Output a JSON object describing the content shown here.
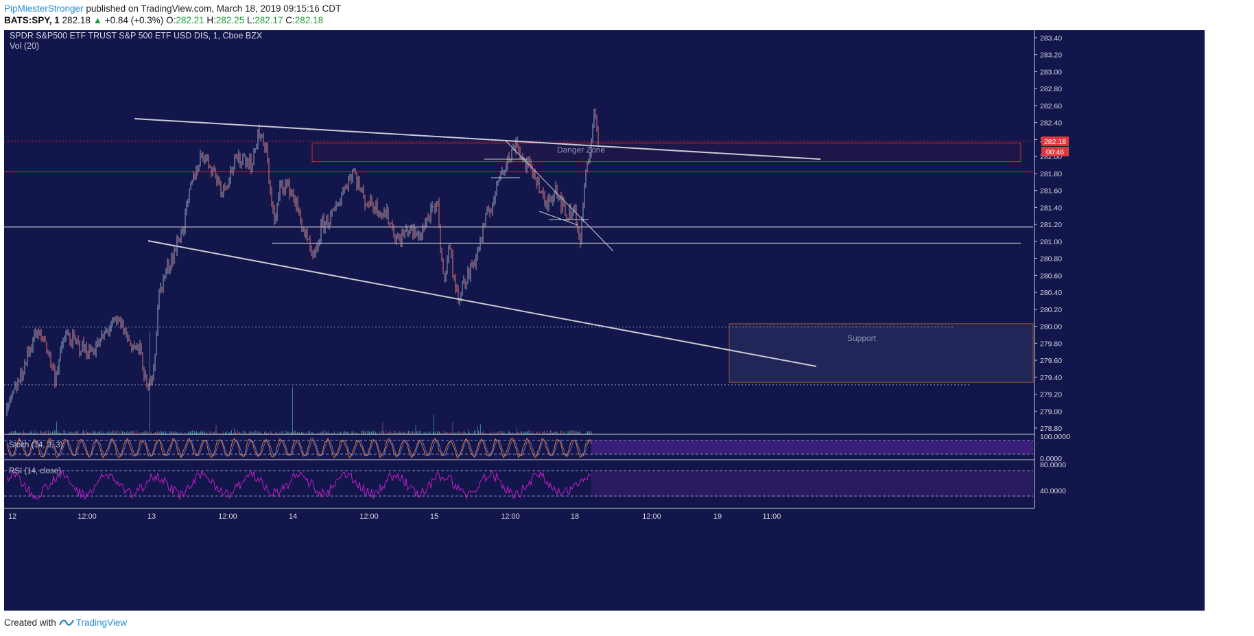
{
  "header": {
    "author": "PipMiesterStronger",
    "published": "published on TradingView.com, March 18, 2019 09:15:16 CDT",
    "symbol": "BATS:SPY, 1",
    "last": "282.18",
    "change": "+0.84 (+0.3%)",
    "o_label": "O:",
    "o_val": "282.21",
    "h_label": "H:",
    "h_val": "282.25",
    "l_label": "L:",
    "l_val": "282.17",
    "c_label": "C:",
    "c_val": "282.18"
  },
  "footer": {
    "created": "Created with",
    "brand": "TradingView"
  },
  "colors": {
    "background": "#13164a",
    "candle_up": "#9aa9c4",
    "candle_down": "#e0787a",
    "trendline": "#c9ccd6",
    "zone_red": "#d9262c",
    "stoch_k": "#e27a2b",
    "stoch_d": "#5d6bd0",
    "rsi": "#c01fc5"
  },
  "chart_data": {
    "type": "line",
    "title": "SPDR S&P500 ETF TRUST S&P 500 ETF USD DIS, 1, Cboe BZX",
    "indicator_volume": "Vol (20)",
    "y_ticks": [
      "283.40",
      "283.20",
      "283.00",
      "282.80",
      "282.60",
      "282.40",
      "282.20",
      "282.00",
      "281.80",
      "281.60",
      "281.40",
      "281.20",
      "281.00",
      "280.80",
      "280.60",
      "280.40",
      "280.20",
      "280.00",
      "279.80",
      "279.60",
      "279.40",
      "279.20",
      "279.00",
      "278.80"
    ],
    "ylim": [
      278.74,
      283.55
    ],
    "x_ticks": [
      "12",
      "12:00",
      "13",
      "12:00",
      "14",
      "12:00",
      "15",
      "12:00",
      "18",
      "12:00",
      "19",
      "11:00"
    ],
    "last_price_label": "282.18",
    "countdown_label": "00:46",
    "annotations": [
      "Danger Zone",
      "Support"
    ],
    "horizontal_levels": [
      282.18,
      281.82,
      281.17,
      280.98,
      279.99,
      279.31
    ],
    "zones": [
      {
        "label": "Danger Zone",
        "y_low": 281.94,
        "y_high": 282.16
      },
      {
        "label": "Support",
        "y_low": 279.34,
        "y_high": 280.03
      }
    ],
    "price_path": [
      [
        0,
        279.0
      ],
      [
        20,
        279.4
      ],
      [
        40,
        279.9
      ],
      [
        55,
        279.85
      ],
      [
        70,
        279.4
      ],
      [
        85,
        279.9
      ],
      [
        100,
        279.8
      ],
      [
        120,
        279.7
      ],
      [
        135,
        279.8
      ],
      [
        150,
        280.0
      ],
      [
        165,
        280.05
      ],
      [
        180,
        279.8
      ],
      [
        195,
        279.7
      ],
      [
        205,
        279.2
      ],
      [
        215,
        279.6
      ],
      [
        222,
        280.4
      ],
      [
        230,
        280.6
      ],
      [
        245,
        280.9
      ],
      [
        258,
        281.2
      ],
      [
        270,
        281.7
      ],
      [
        285,
        282.05
      ],
      [
        300,
        281.85
      ],
      [
        315,
        281.6
      ],
      [
        330,
        281.9
      ],
      [
        345,
        282.0
      ],
      [
        358,
        281.9
      ],
      [
        366,
        282.3
      ],
      [
        378,
        282.05
      ],
      [
        390,
        281.2
      ],
      [
        400,
        281.7
      ],
      [
        415,
        281.6
      ],
      [
        430,
        281.2
      ],
      [
        447,
        280.75
      ],
      [
        460,
        281.2
      ],
      [
        475,
        281.3
      ],
      [
        490,
        281.6
      ],
      [
        505,
        281.85
      ],
      [
        520,
        281.5
      ],
      [
        540,
        281.4
      ],
      [
        555,
        281.3
      ],
      [
        570,
        281.0
      ],
      [
        585,
        281.15
      ],
      [
        600,
        281.05
      ],
      [
        615,
        281.3
      ],
      [
        628,
        281.4
      ],
      [
        636,
        280.55
      ],
      [
        645,
        280.95
      ],
      [
        656,
        280.35
      ],
      [
        670,
        280.55
      ],
      [
        685,
        280.85
      ],
      [
        700,
        281.3
      ],
      [
        712,
        281.55
      ],
      [
        720,
        281.85
      ],
      [
        735,
        282.0
      ],
      [
        742,
        282.2
      ],
      [
        752,
        281.95
      ],
      [
        770,
        281.8
      ],
      [
        785,
        281.4
      ],
      [
        800,
        281.65
      ],
      [
        815,
        281.3
      ],
      [
        828,
        281.4
      ],
      [
        836,
        280.95
      ],
      [
        842,
        281.65
      ],
      [
        850,
        282.1
      ],
      [
        857,
        282.55
      ],
      [
        862,
        282.18
      ]
    ],
    "stoch": {
      "name": "Stoch (14, 3, 3)",
      "levels": [
        "100.0000",
        "0.0000"
      ]
    },
    "rsi": {
      "name": "RSI (14, close)",
      "levels": [
        "80.0000",
        "40.0000"
      ]
    }
  }
}
